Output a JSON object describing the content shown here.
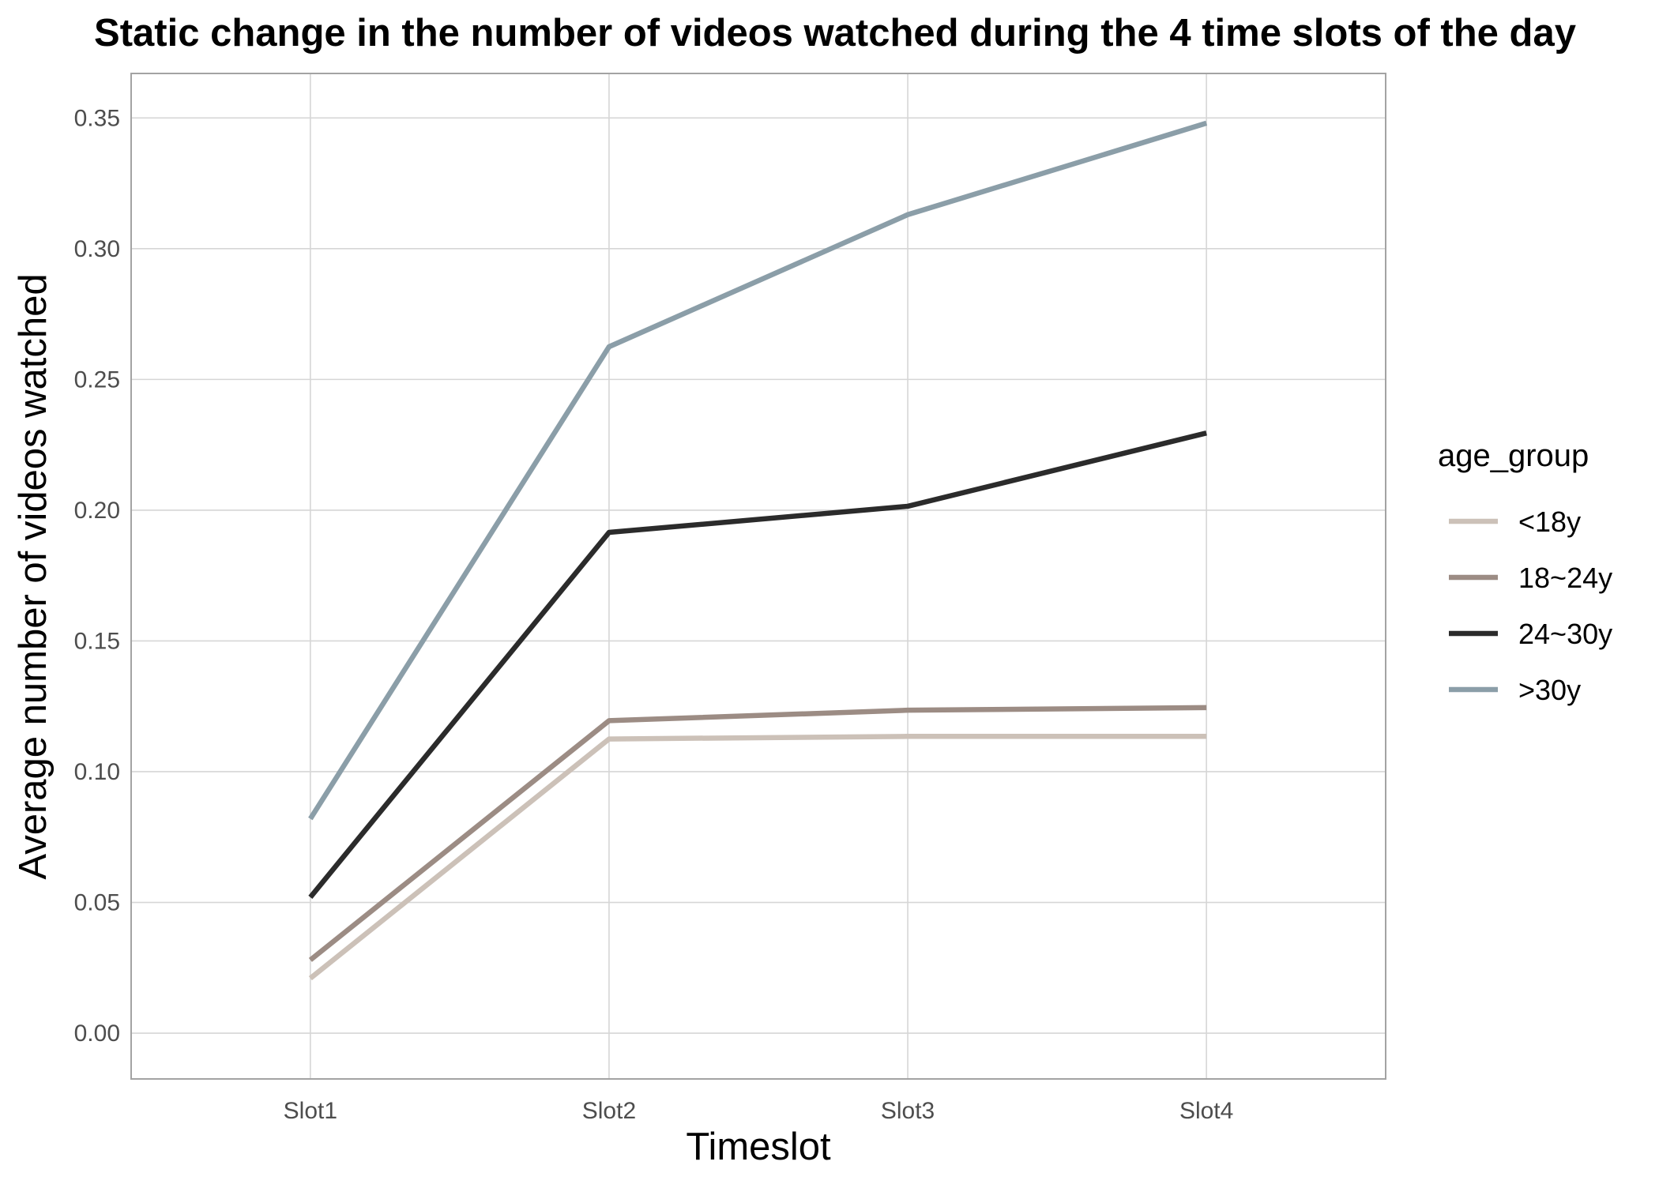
{
  "chart_data": {
    "type": "line",
    "title": "Static change in the number of videos watched during the 4 time slots of the day",
    "xlabel": "Timeslot",
    "ylabel": "Average number of videos watched",
    "categories": [
      "Slot1",
      "Slot2",
      "Slot3",
      "Slot4"
    ],
    "ylim": [
      -0.0175,
      0.367
    ],
    "yticks": [
      0.0,
      0.05,
      0.1,
      0.15,
      0.2,
      0.25,
      0.3,
      0.35
    ],
    "ytick_labels": [
      "0.00",
      "0.05",
      "0.10",
      "0.15",
      "0.20",
      "0.25",
      "0.30",
      "0.35"
    ],
    "grid": true,
    "legend": {
      "title": "age_group",
      "position": "right"
    },
    "series": [
      {
        "name": "<18y",
        "color": "#ccc1b8",
        "values": [
          0.021,
          0.1125,
          0.1135,
          0.1135
        ]
      },
      {
        "name": "18~24y",
        "color": "#9c8c84",
        "values": [
          0.028,
          0.1195,
          0.1235,
          0.1245
        ]
      },
      {
        "name": "24~30y",
        "color": "#2b2b2b",
        "values": [
          0.052,
          0.1915,
          0.2015,
          0.2295
        ]
      },
      {
        "name": ">30y",
        "color": "#8b9ea8",
        "values": [
          0.082,
          0.2625,
          0.313,
          0.348
        ]
      }
    ]
  }
}
